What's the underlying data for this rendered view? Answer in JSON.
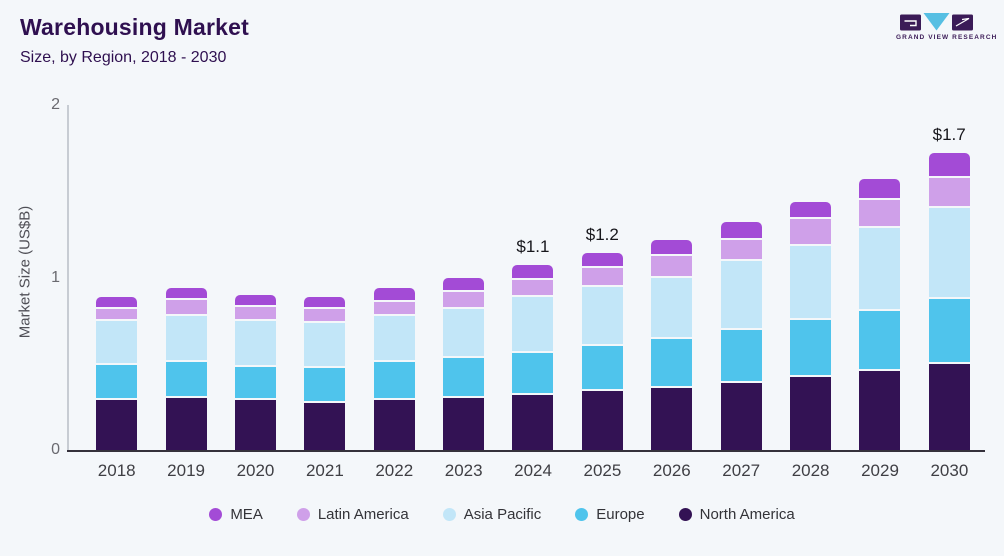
{
  "header": {
    "title": "Warehousing Market",
    "subtitle": "Size, by Region, 2018 - 2030",
    "logo_brand": "GRAND VIEW RESEARCH"
  },
  "colors": {
    "background": "#f4f7fa",
    "title_text": "#2f1050",
    "logo_dark_purple": "#3b1b57",
    "logo_light_blue": "#56bfe3",
    "axis_line": "#c7ccd3",
    "baseline": "#35313b"
  },
  "chart_data": {
    "type": "bar",
    "stacked": true,
    "title": "Warehousing Market",
    "subtitle": "Size, by Region, 2018 - 2030",
    "xlabel": "",
    "ylabel": "Market Size (US$B)",
    "ylim": [
      0,
      2
    ],
    "yticks": [
      0,
      1,
      2
    ],
    "grid": false,
    "legend_position": "bottom",
    "categories": [
      "2018",
      "2019",
      "2020",
      "2021",
      "2022",
      "2023",
      "2024",
      "2025",
      "2026",
      "2027",
      "2028",
      "2029",
      "2030"
    ],
    "series": [
      {
        "name": "North America",
        "color": "#331254",
        "values": [
          0.3,
          0.31,
          0.3,
          0.28,
          0.3,
          0.31,
          0.33,
          0.35,
          0.37,
          0.4,
          0.43,
          0.47,
          0.51
        ]
      },
      {
        "name": "Europe",
        "color": "#4fc4ec",
        "values": [
          0.2,
          0.21,
          0.19,
          0.2,
          0.22,
          0.23,
          0.24,
          0.26,
          0.28,
          0.3,
          0.33,
          0.34,
          0.37
        ]
      },
      {
        "name": "Asia Pacific",
        "color": "#c2e6f8",
        "values": [
          0.25,
          0.26,
          0.26,
          0.26,
          0.26,
          0.28,
          0.32,
          0.34,
          0.35,
          0.4,
          0.43,
          0.48,
          0.53
        ]
      },
      {
        "name": "Latin America",
        "color": "#cfa0e9",
        "values": [
          0.07,
          0.09,
          0.08,
          0.08,
          0.08,
          0.1,
          0.1,
          0.11,
          0.13,
          0.12,
          0.15,
          0.16,
          0.17
        ]
      },
      {
        "name": "MEA",
        "color": "#a34bd6",
        "values": [
          0.07,
          0.07,
          0.07,
          0.07,
          0.08,
          0.08,
          0.08,
          0.08,
          0.09,
          0.1,
          0.1,
          0.12,
          0.14
        ]
      }
    ],
    "annotations": [
      {
        "category": "2024",
        "text": "$1.1"
      },
      {
        "category": "2025",
        "text": "$1.2"
      },
      {
        "category": "2030",
        "text": "$1.7"
      }
    ],
    "legend": [
      "MEA",
      "Latin America",
      "Asia Pacific",
      "Europe",
      "North America"
    ]
  }
}
